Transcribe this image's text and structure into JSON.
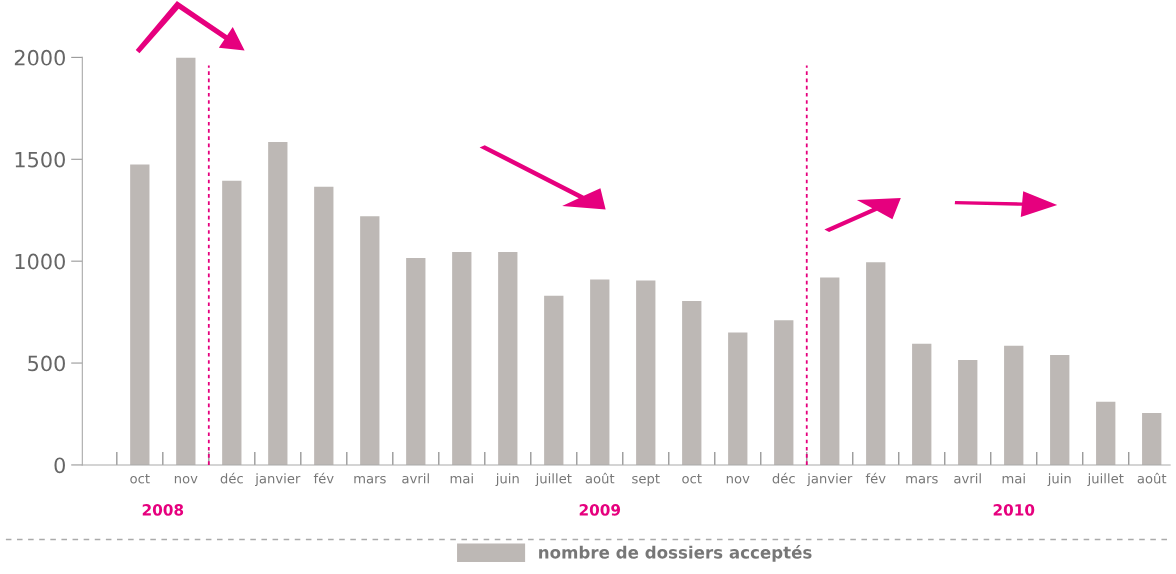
{
  "chart_data": {
    "type": "bar",
    "categories": [
      "oct",
      "nov",
      "déc",
      "janvier",
      "fév",
      "mars",
      "avril",
      "mai",
      "juin",
      "juillet",
      "août",
      "sept",
      "oct",
      "nov",
      "déc",
      "janvier",
      "fév",
      "mars",
      "avril",
      "mai",
      "juin",
      "juillet",
      "août"
    ],
    "series": [
      {
        "name": "nombre de dossiers acceptés",
        "color": "#bdb8b5",
        "values": [
          1475,
          2000,
          1395,
          1585,
          1365,
          1220,
          1015,
          1045,
          1045,
          830,
          910,
          905,
          805,
          650,
          710,
          920,
          995,
          595,
          515,
          585,
          540,
          310,
          255
        ]
      }
    ],
    "ylim": [
      0,
      2000
    ],
    "yticks": [
      0,
      500,
      1000,
      1500,
      2000
    ],
    "annotations": [
      "2008",
      "2009",
      "2010"
    ],
    "grid": false,
    "legend": "bottom"
  }
}
